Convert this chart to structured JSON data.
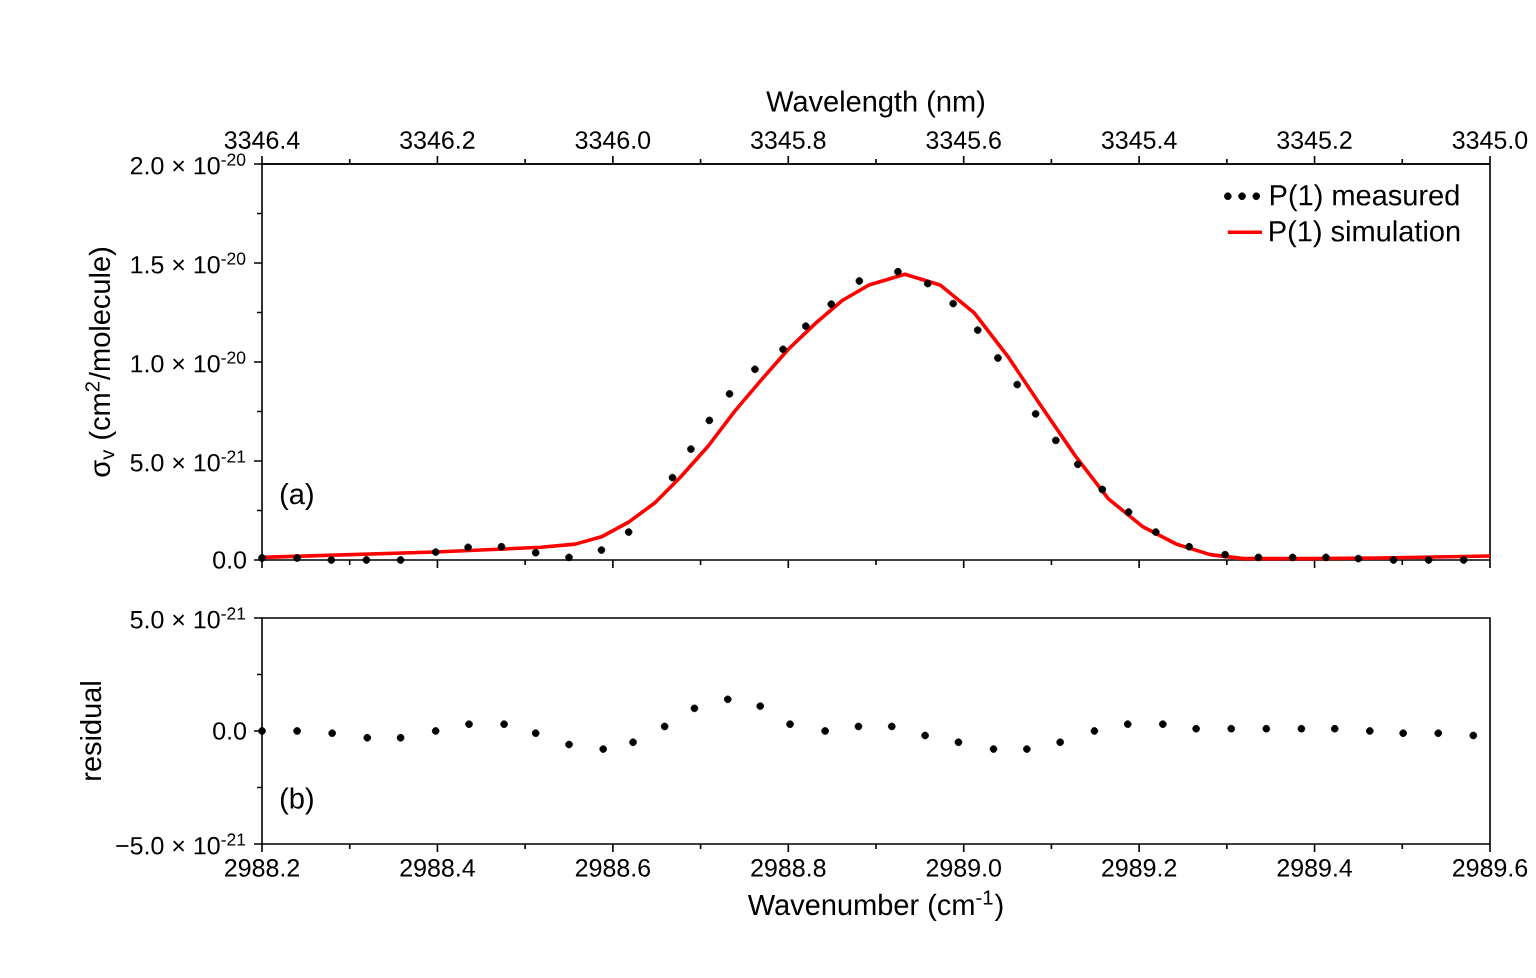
{
  "chart_data": [
    {
      "type": "line",
      "ylabel": "σ$_{v}$ (cm$^{2}$/molecule)",
      "x2label": "Wavelength (nm)",
      "annotations": [
        "(a)"
      ],
      "legend": "top right",
      "xlim": [
        2988.2,
        2989.6
      ],
      "xticks": [
        {
          "value": 2988.2,
          "label": "2988.2"
        },
        {
          "value": 2988.4,
          "label": "2988.4"
        },
        {
          "value": 2988.6,
          "label": "2988.6"
        },
        {
          "value": 2988.8,
          "label": "2988.8"
        },
        {
          "value": 2989.0,
          "label": "2989.0"
        },
        {
          "value": 2989.2,
          "label": "2989.2"
        },
        {
          "value": 2989.4,
          "label": "2989.4"
        },
        {
          "value": 2989.6,
          "label": "2989.6"
        }
      ],
      "tick_labels": "y",
      "x2lim": [
        3346.4,
        3345.0
      ],
      "x2ticks": [
        {
          "value": 3346.4,
          "label": "3346.4"
        },
        {
          "value": 3346.2,
          "label": "3346.2"
        },
        {
          "value": 3346.0,
          "label": "3346.0"
        },
        {
          "value": 3345.8,
          "label": "3345.8"
        },
        {
          "value": 3345.6,
          "label": "3345.6"
        },
        {
          "value": 3345.4,
          "label": "3345.4"
        },
        {
          "value": 3345.2,
          "label": "3345.2"
        },
        {
          "value": 3345.0,
          "label": "3345.0"
        }
      ],
      "ylim": [
        0,
        2e-20
      ],
      "yticks": [
        {
          "value": 0,
          "label": "0.0"
        },
        {
          "value": 5e-21,
          "label": "5.0 × 10$^{-21}$"
        },
        {
          "value": 1e-20,
          "label": "1.0 × 10$^{-20}$"
        },
        {
          "value": 1.5e-20,
          "label": "1.5 × 10$^{-20}$"
        },
        {
          "value": 2e-20,
          "label": "2.0 × 10$^{-20}$"
        }
      ],
      "series": [
        {
          "name": "P(1) measured",
          "type": "scatter",
          "marker": "circle",
          "color": "#000000",
          "x": [
            2988.2,
            2988.24,
            2988.279,
            2988.319,
            2988.358,
            2988.398,
            2988.435,
            2988.473,
            2988.512,
            2988.55,
            2988.587,
            2988.618,
            2988.668,
            2988.689,
            2988.71,
            2988.733,
            2988.762,
            2988.794,
            2988.82,
            2988.849,
            2988.881,
            2988.925,
            2988.959,
            2988.988,
            2989.016,
            2989.039,
            2989.061,
            2989.082,
            2989.105,
            2989.13,
            2989.158,
            2989.188,
            2989.219,
            2989.257,
            2989.298,
            2989.336,
            2989.375,
            2989.413,
            2989.45,
            2989.49,
            2989.53,
            2989.57
          ],
          "values": [
            1e-22,
            1e-22,
            0,
            0,
            0,
            4e-22,
            6.4e-22,
            6.7e-22,
            3.7e-22,
            1.3e-22,
            5e-22,
            1.41e-21,
            4.16e-21,
            5.6e-21,
            7.05e-21,
            8.39e-21,
            9.63e-21,
            1.064e-20,
            1.181e-20,
            1.292e-20,
            1.409e-20,
            1.456e-20,
            1.396e-20,
            1.295e-20,
            1.161e-20,
            1.02e-20,
            8.86e-21,
            7.38e-21,
            6.04e-21,
            4.83e-21,
            3.56e-21,
            2.42e-21,
            1.41e-21,
            6.7e-22,
            2.7e-22,
            1.3e-22,
            1.3e-22,
            1.3e-22,
            7e-23,
            0,
            0,
            0
          ]
        },
        {
          "name": "P(1) simulation",
          "type": "line",
          "color": "#ff0000",
          "x": [
            2988.2,
            2988.397,
            2988.518,
            2988.557,
            2988.587,
            2988.618,
            2988.648,
            2988.678,
            2988.709,
            2988.739,
            2988.77,
            2988.8,
            2988.831,
            2988.861,
            2988.892,
            2988.933,
            2988.973,
            2989.012,
            2989.05,
            2989.088,
            2989.127,
            2989.165,
            2989.204,
            2989.242,
            2989.281,
            2989.319,
            2989.396,
            2989.473,
            2989.6
          ],
          "values": [
            1.3e-22,
            4e-22,
            6.4e-22,
            8e-22,
            1.17e-21,
            1.91e-21,
            2.89e-21,
            4.23e-21,
            5.77e-21,
            7.52e-21,
            9.13e-21,
            1.064e-20,
            1.195e-20,
            1.309e-20,
            1.389e-20,
            1.443e-20,
            1.389e-20,
            1.248e-20,
            1.03e-20,
            7.79e-21,
            5.27e-21,
            3.09e-21,
            1.68e-21,
            8.1e-22,
            2.7e-22,
            7e-23,
            7e-23,
            1e-22,
            2e-22
          ]
        }
      ]
    },
    {
      "type": "scatter",
      "xlabel": "Wavenumber (cm$^{-1}$)",
      "ylabel": "residual",
      "annotations": [
        "(b)"
      ],
      "xlim": [
        2988.2,
        2989.6
      ],
      "xticks": [
        {
          "value": 2988.2,
          "label": "2988.2"
        },
        {
          "value": 2988.4,
          "label": "2988.4"
        },
        {
          "value": 2988.6,
          "label": "2988.6"
        },
        {
          "value": 2988.8,
          "label": "2988.8"
        },
        {
          "value": 2989.0,
          "label": "2989.0"
        },
        {
          "value": 2989.2,
          "label": "2989.2"
        },
        {
          "value": 2989.4,
          "label": "2989.4"
        },
        {
          "value": 2989.6,
          "label": "2989.6"
        }
      ],
      "ylim": [
        -5e-21,
        5e-21
      ],
      "yticks": [
        {
          "value": -5e-21,
          "label": "−5.0 × 10$^{-21}$"
        },
        {
          "value": 0,
          "label": "0.0"
        },
        {
          "value": 5e-21,
          "label": "5.0 × 10$^{-21}$"
        }
      ],
      "series": [
        {
          "marker": "circle",
          "color": "#000000",
          "x": [
            2988.2,
            2988.24,
            2988.28,
            2988.32,
            2988.358,
            2988.398,
            2988.436,
            2988.476,
            2988.512,
            2988.55,
            2988.589,
            2988.623,
            2988.659,
            2988.693,
            2988.731,
            2988.768,
            2988.802,
            2988.842,
            2988.88,
            2988.918,
            2988.956,
            2988.994,
            2989.034,
            2989.072,
            2989.11,
            2989.149,
            2989.187,
            2989.227,
            2989.265,
            2989.305,
            2989.345,
            2989.385,
            2989.423,
            2989.463,
            2989.501,
            2989.541,
            2989.581
          ],
          "values": [
            0,
            0,
            -1e-22,
            -3e-22,
            -3e-22,
            0,
            3e-22,
            3e-22,
            -1e-22,
            -6e-22,
            -8e-22,
            -5e-22,
            2e-22,
            1e-21,
            1.4e-21,
            1.1e-21,
            3e-22,
            0,
            2e-22,
            2e-22,
            -2e-22,
            -5e-22,
            -8e-22,
            -8e-22,
            -5e-22,
            0,
            3e-22,
            3e-22,
            1e-22,
            1e-22,
            1e-22,
            1e-22,
            1e-22,
            0,
            -1e-22,
            -1e-22,
            -2e-22
          ]
        }
      ]
    }
  ]
}
